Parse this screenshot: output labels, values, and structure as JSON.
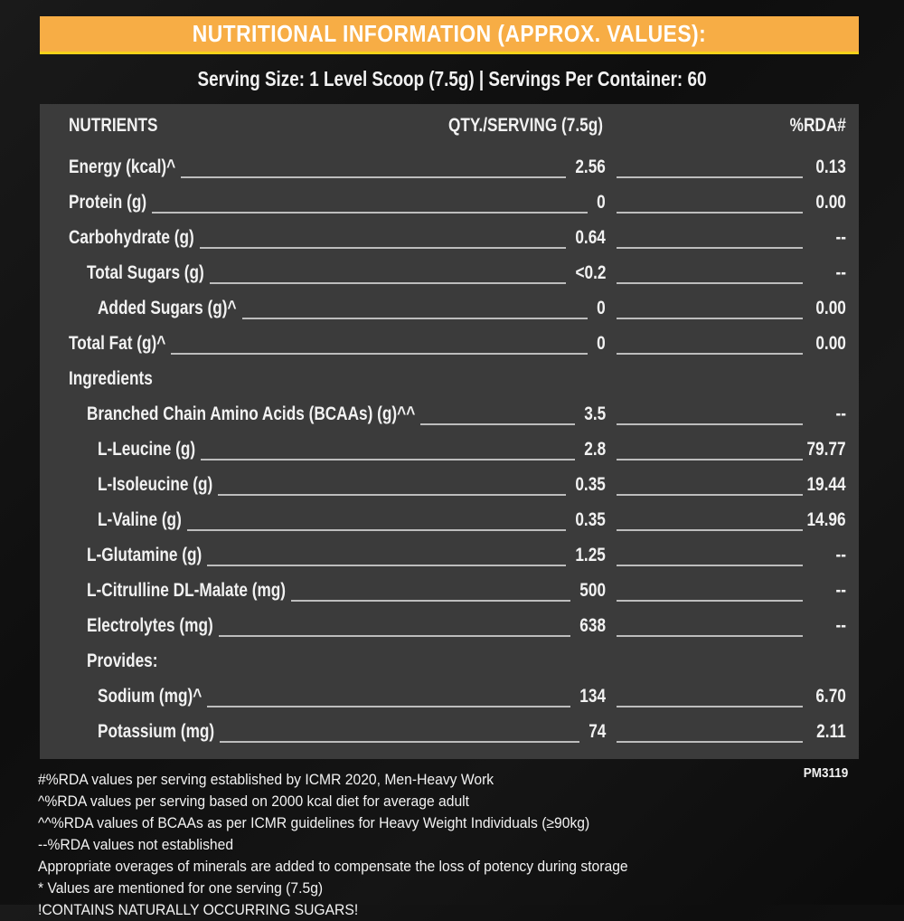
{
  "title": "NUTRITIONAL INFORMATION (APPROX. VALUES):",
  "serving": "Serving Size: 1 Level Scoop (7.5g)  |  Servings Per Container: 60",
  "header": {
    "nutrients": "NUTRIENTS",
    "qty": "QTY./SERVING (7.5g)",
    "rda": "%RDA#"
  },
  "rows": [
    {
      "label": "Energy (kcal)^",
      "qty": "2.56",
      "rda": "0.13",
      "indent": 0
    },
    {
      "label": "Protein (g)",
      "qty": "0",
      "rda": "0.00",
      "indent": 0
    },
    {
      "label": "Carbohydrate (g)",
      "qty": "0.64",
      "rda": "--",
      "indent": 0
    },
    {
      "label": "Total Sugars (g)",
      "qty": "<0.2",
      "rda": "--",
      "indent": 1
    },
    {
      "label": "Added Sugars (g)^",
      "qty": "0",
      "rda": "0.00",
      "indent": 2
    },
    {
      "label": "Total Fat (g)^",
      "qty": "0",
      "rda": "0.00",
      "indent": 0
    },
    {
      "label": "Ingredients",
      "qty": "",
      "rda": "",
      "indent": 0
    },
    {
      "label": "Branched Chain Amino Acids (BCAAs) (g)^^",
      "qty": "3.5",
      "rda": "--",
      "indent": 1
    },
    {
      "label": "L-Leucine (g)",
      "qty": "2.8",
      "rda": "79.77",
      "indent": 2
    },
    {
      "label": "L-Isoleucine (g)",
      "qty": "0.35",
      "rda": "19.44",
      "indent": 2
    },
    {
      "label": "L-Valine (g)",
      "qty": "0.35",
      "rda": "14.96",
      "indent": 2
    },
    {
      "label": "L-Glutamine (g)",
      "qty": "1.25",
      "rda": "--",
      "indent": 1
    },
    {
      "label": "L-Citrulline DL-Malate (mg)",
      "qty": "500",
      "rda": "--",
      "indent": 1
    },
    {
      "label": "Electrolytes (mg)",
      "qty": "638",
      "rda": "--",
      "indent": 1
    },
    {
      "label": "Provides:",
      "qty": "",
      "rda": "",
      "indent": 1
    },
    {
      "label": "Sodium (mg)^",
      "qty": "134",
      "rda": "6.70",
      "indent": 2
    },
    {
      "label": "Potassium (mg)",
      "qty": "74",
      "rda": "2.11",
      "indent": 2
    }
  ],
  "code": "PM3119",
  "notes": [
    "#%RDA values per serving established by ICMR 2020, Men-Heavy Work",
    "^%RDA values per serving based on 2000 kcal diet for average adult",
    "^^%RDA values of BCAAs as per ICMR guidelines for Heavy Weight Individuals (≥90kg)",
    "--%RDA values not established",
    "Appropriate overages of minerals are added to compensate the loss of potency during storage",
    "* Values are mentioned for one serving (7.5g)",
    "!CONTAINS NATURALLY OCCURRING SUGARS!"
  ],
  "colors": {
    "banner": "#f7ad45",
    "panel": "#3b3b3b"
  }
}
